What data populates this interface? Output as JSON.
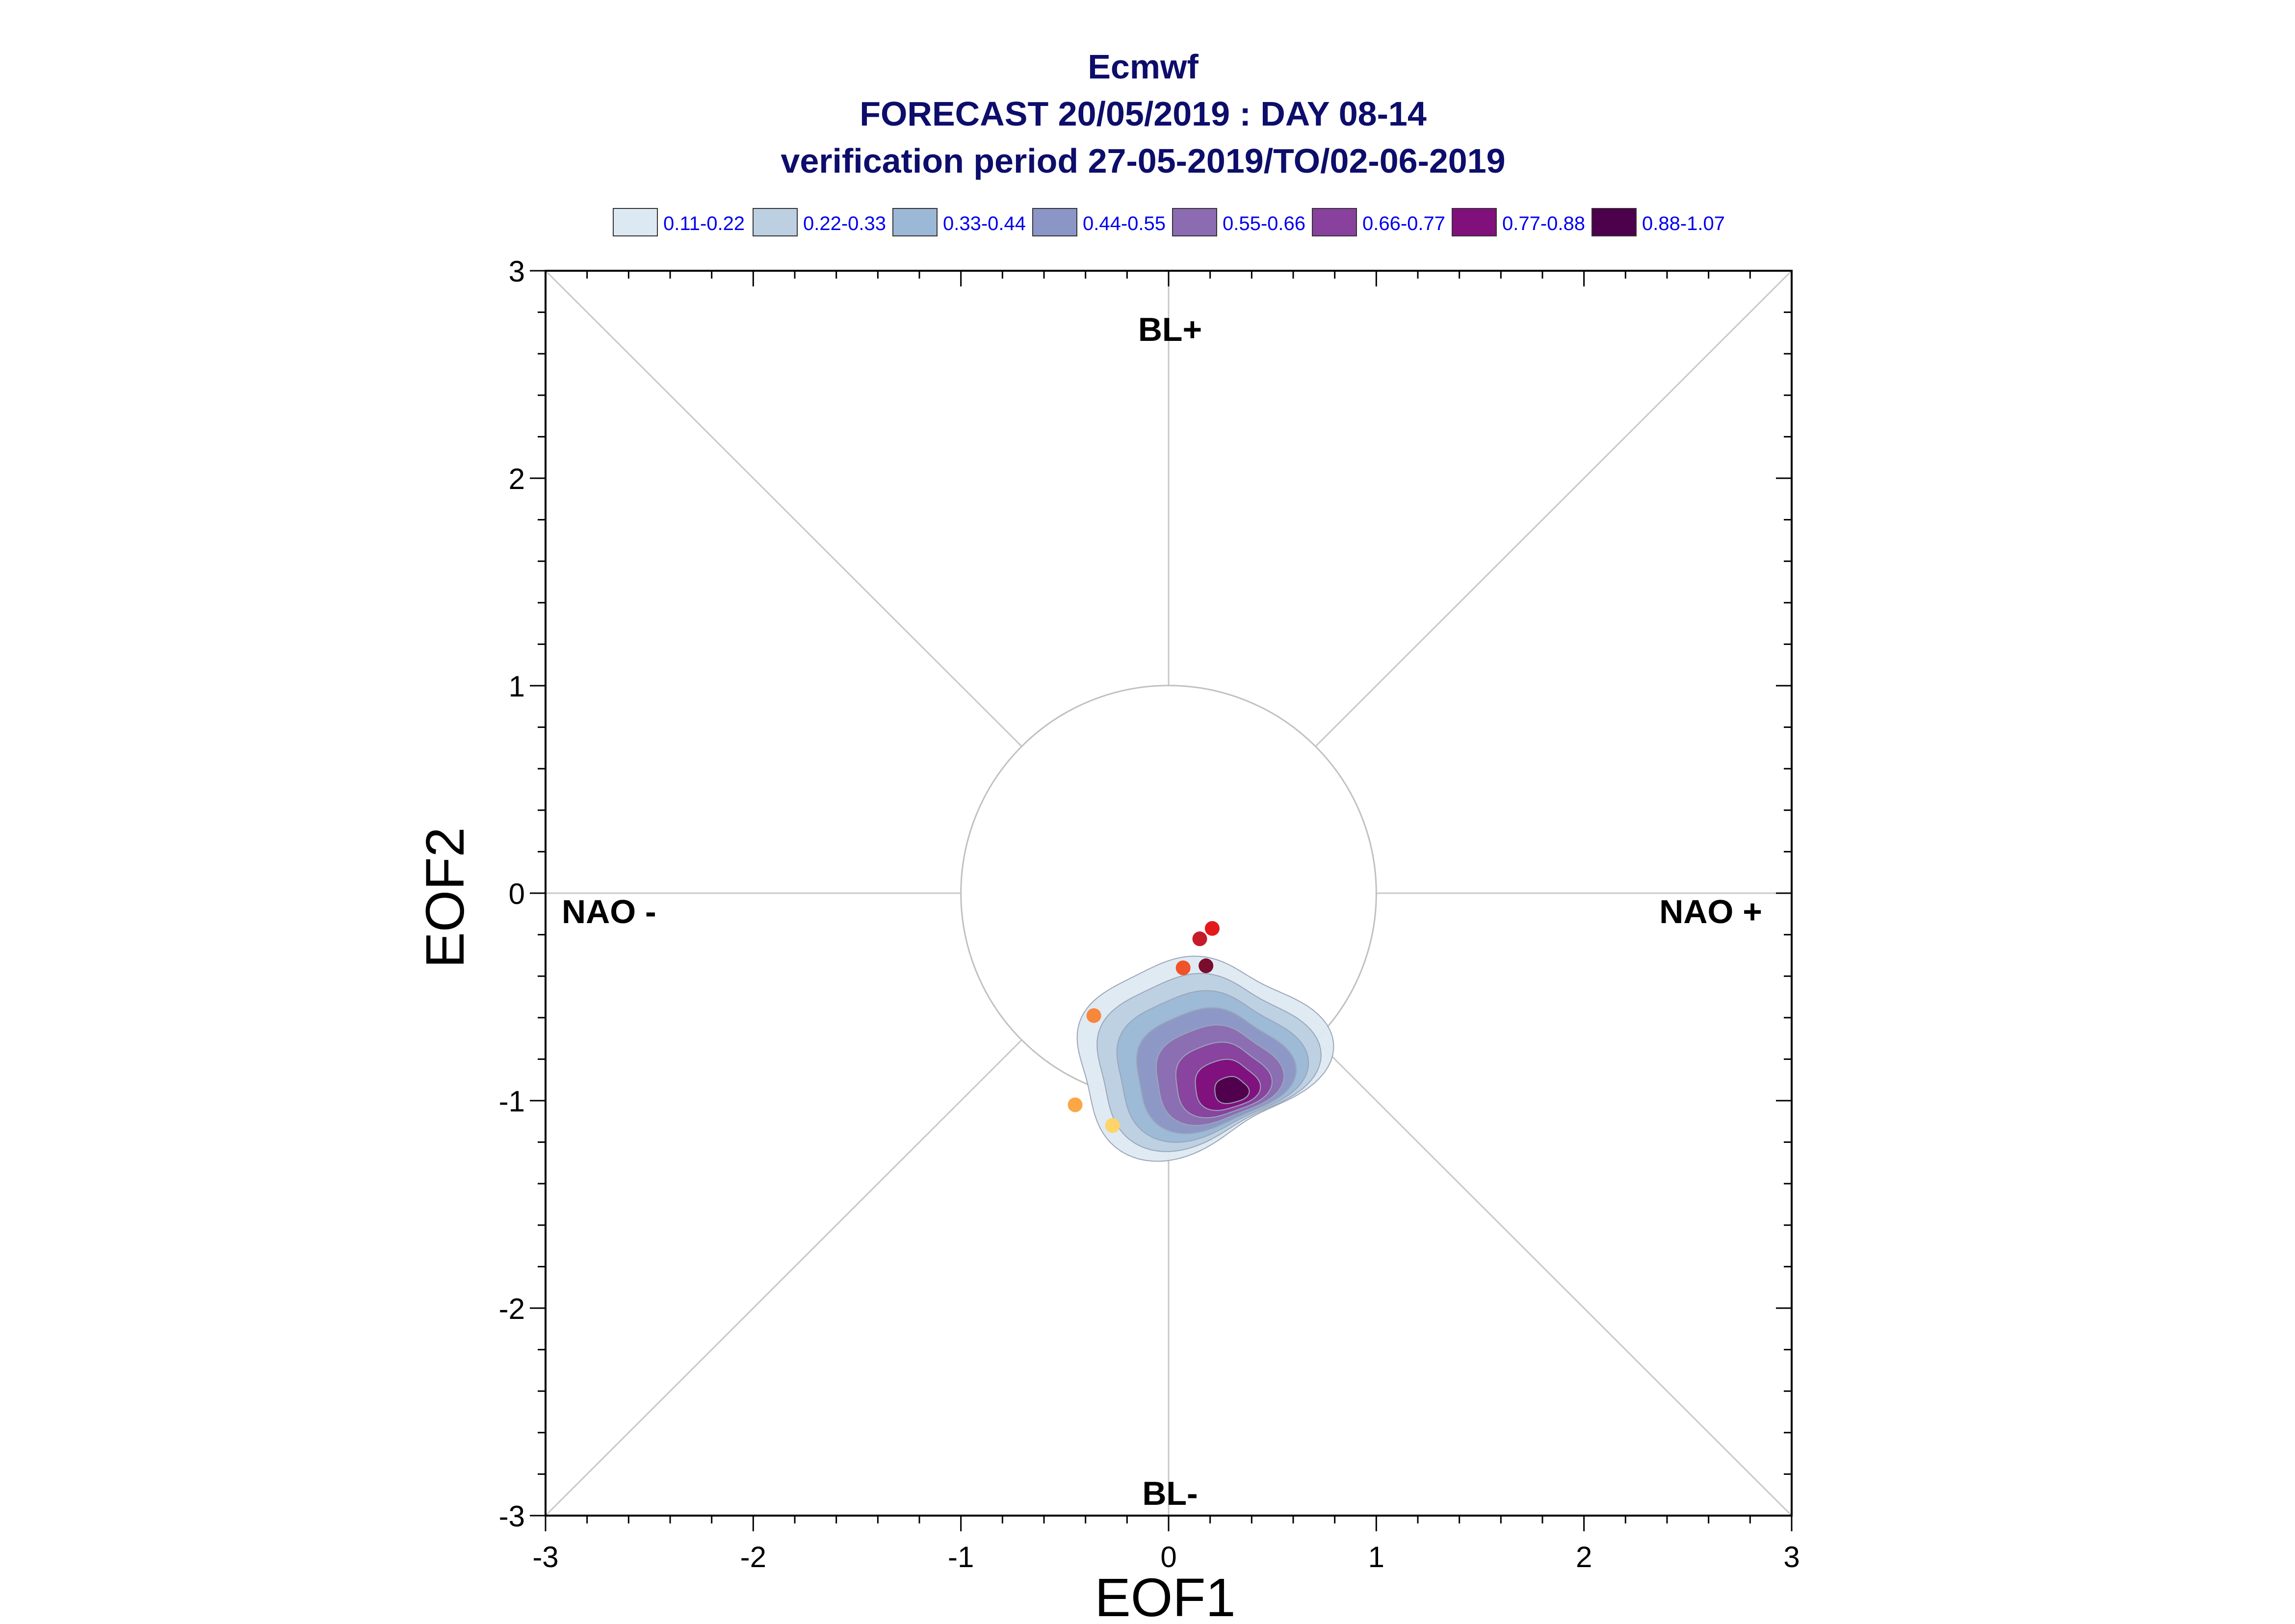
{
  "chart_data": {
    "type": "scatter",
    "title_lines": [
      "Ecmwf",
      "FORECAST 20/05/2019 : DAY 08-14",
      "verification period 27-05-2019/TO/02-06-2019"
    ],
    "xlabel": "EOF1",
    "ylabel": "EOF2",
    "xlim": [
      -3,
      3
    ],
    "ylim": [
      -3,
      3
    ],
    "xticks": [
      "-3",
      "-2",
      "-1",
      "0",
      "1",
      "2",
      "3"
    ],
    "yticks": [
      "-3",
      "-2",
      "-1",
      "0",
      "1",
      "2",
      "3"
    ],
    "reference_circle_radius": 1,
    "region_labels": {
      "top": "BL+",
      "bottom": "BL-",
      "left": "NAO -",
      "right": "NAO +"
    },
    "density_legend": [
      {
        "label": "0.11-0.22",
        "color": "#dde9f2"
      },
      {
        "label": "0.22-0.33",
        "color": "#bcd0e2"
      },
      {
        "label": "0.33-0.44",
        "color": "#9bb8d6"
      },
      {
        "label": "0.44-0.55",
        "color": "#8c96c6"
      },
      {
        "label": "0.55-0.66",
        "color": "#8c6bb1"
      },
      {
        "label": "0.66-0.77",
        "color": "#88419d"
      },
      {
        "label": "0.77-0.88",
        "color": "#810f7c"
      },
      {
        "label": "0.88-1.07",
        "color": "#4d004b"
      }
    ],
    "density_peak": [
      0.3,
      -0.95
    ],
    "points": [
      {
        "x": 0.21,
        "y": -0.17,
        "color": "#e31a1c"
      },
      {
        "x": 0.15,
        "y": -0.22,
        "color": "#c51b2a"
      },
      {
        "x": 0.18,
        "y": -0.35,
        "color": "#7a0c2e"
      },
      {
        "x": 0.07,
        "y": -0.36,
        "color": "#f0522a"
      },
      {
        "x": -0.36,
        "y": -0.59,
        "color": "#f7873a"
      },
      {
        "x": -0.45,
        "y": -1.02,
        "color": "#fba746"
      },
      {
        "x": -0.27,
        "y": -1.12,
        "color": "#fed46a"
      }
    ]
  }
}
